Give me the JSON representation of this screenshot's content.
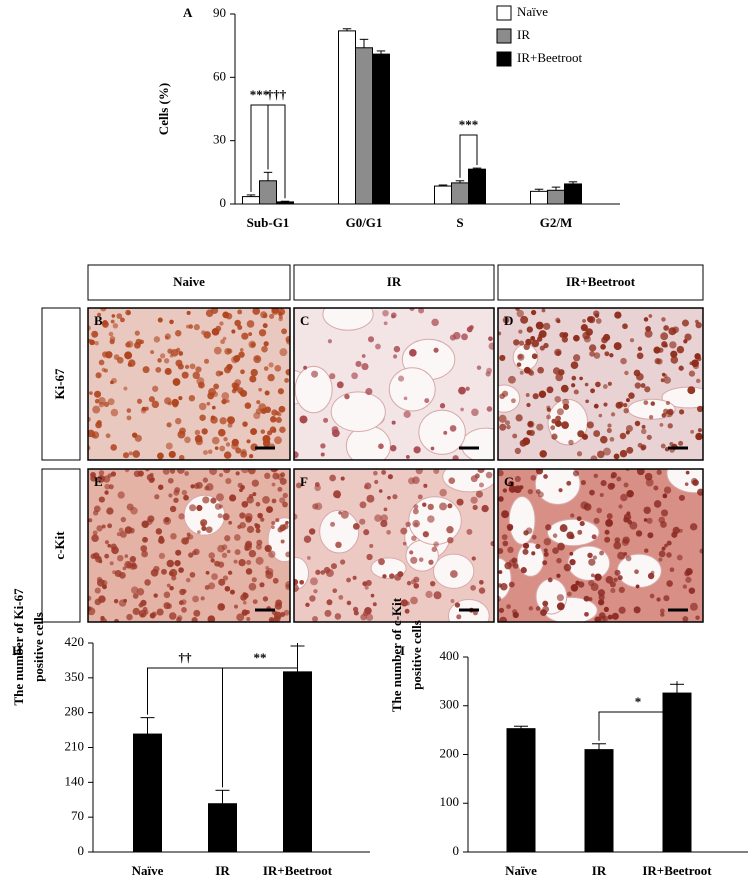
{
  "chart_data": [
    {
      "type": "bar",
      "title": "A",
      "ylabel": "Cells (%)",
      "categories": [
        "Sub-G1",
        "G0/G1",
        "S",
        "G2/M"
      ],
      "series": [
        {
          "name": "Naïve",
          "color": "#ffffff",
          "values": [
            3.5,
            82,
            8.5,
            6
          ],
          "errors": [
            0.8,
            1,
            0.5,
            1
          ]
        },
        {
          "name": "IR",
          "color": "#8c8c8c",
          "values": [
            11,
            74,
            10,
            6.5
          ],
          "errors": [
            4,
            4,
            1,
            1.5
          ]
        },
        {
          "name": "IR+Beetroot",
          "color": "#000000",
          "values": [
            1,
            71,
            16.5,
            9.5
          ],
          "errors": [
            0.3,
            1.5,
            0.5,
            1
          ]
        }
      ],
      "ylim": [
        0,
        90
      ],
      "yticks": [
        0,
        30,
        60,
        90
      ],
      "annotations": [
        "***",
        "†††",
        "***"
      ],
      "legend": "upper right"
    },
    {
      "type": "bar",
      "title": "H",
      "ylabel": [
        "The number of Ki-67",
        "positive cells"
      ],
      "categories": [
        "Naïve",
        "IR",
        "IR+Beetroot"
      ],
      "values": [
        237,
        97,
        362
      ],
      "errors": [
        33,
        27,
        52
      ],
      "color": "#000000",
      "ylim": [
        0,
        420
      ],
      "yticks": [
        0,
        70,
        140,
        210,
        280,
        350,
        420
      ],
      "annotations": [
        "††",
        "**"
      ]
    },
    {
      "type": "bar",
      "title": "I",
      "ylabel": [
        "The number of c-Kit",
        "positive cells"
      ],
      "categories": [
        "Naïve",
        "IR",
        "IR+Beetroot"
      ],
      "values": [
        253,
        210,
        326
      ],
      "errors": [
        5,
        12,
        18
      ],
      "color": "#000000",
      "ylim": [
        0,
        400
      ],
      "yticks": [
        0,
        100,
        200,
        300,
        400
      ],
      "annotations": [
        "*"
      ]
    }
  ],
  "panels": {
    "columns": [
      "Naive",
      "IR",
      "IR+Beetroot"
    ],
    "rows": [
      "Ki-67",
      "c-Kit"
    ],
    "letters": [
      [
        "B",
        "C",
        "D"
      ],
      [
        "E",
        "F",
        "G"
      ]
    ]
  }
}
